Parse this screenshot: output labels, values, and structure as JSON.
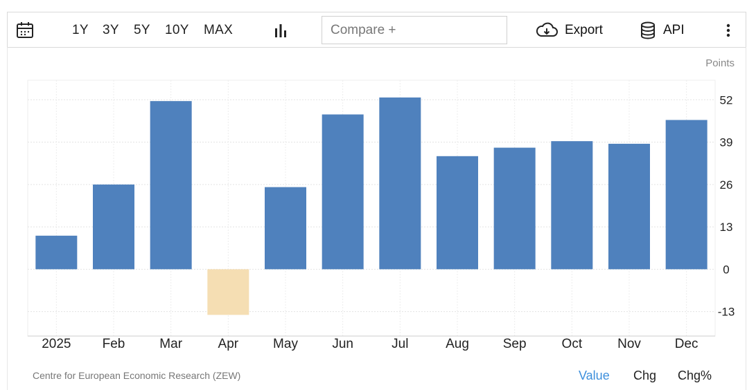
{
  "toolbar": {
    "calendar_icon": "calendar-icon",
    "ranges": [
      "1Y",
      "3Y",
      "5Y",
      "10Y",
      "MAX"
    ],
    "chart_type_icon": "bar-chart-icon",
    "compare_placeholder": "Compare +",
    "export_label": "Export",
    "export_icon": "cloud-download-icon",
    "api_label": "API",
    "api_icon": "database-icon",
    "more_icon": "vertical-dots-icon"
  },
  "chart_data": {
    "type": "bar",
    "unit_label": "Points",
    "categories": [
      "2025",
      "Feb",
      "Mar",
      "Apr",
      "May",
      "Jun",
      "Jul",
      "Aug",
      "Sep",
      "Oct",
      "Nov",
      "Dec"
    ],
    "values": [
      10.3,
      26.0,
      51.6,
      -14.0,
      25.2,
      47.5,
      52.7,
      34.7,
      37.3,
      39.3,
      38.5,
      45.8
    ],
    "yticks": [
      52,
      39,
      26,
      13,
      0,
      -13
    ],
    "ylim": [
      -20.5,
      58
    ],
    "positive_color": "#4f81bd",
    "negative_color": "#f5deb3",
    "y_axis_position": "right",
    "grid": true
  },
  "footer": {
    "source": "Centre for European Economic Research (ZEW)",
    "tabs": [
      "Value",
      "Chg",
      "Chg%"
    ],
    "active_tab": "Value",
    "active_color": "#3d8fdc"
  }
}
